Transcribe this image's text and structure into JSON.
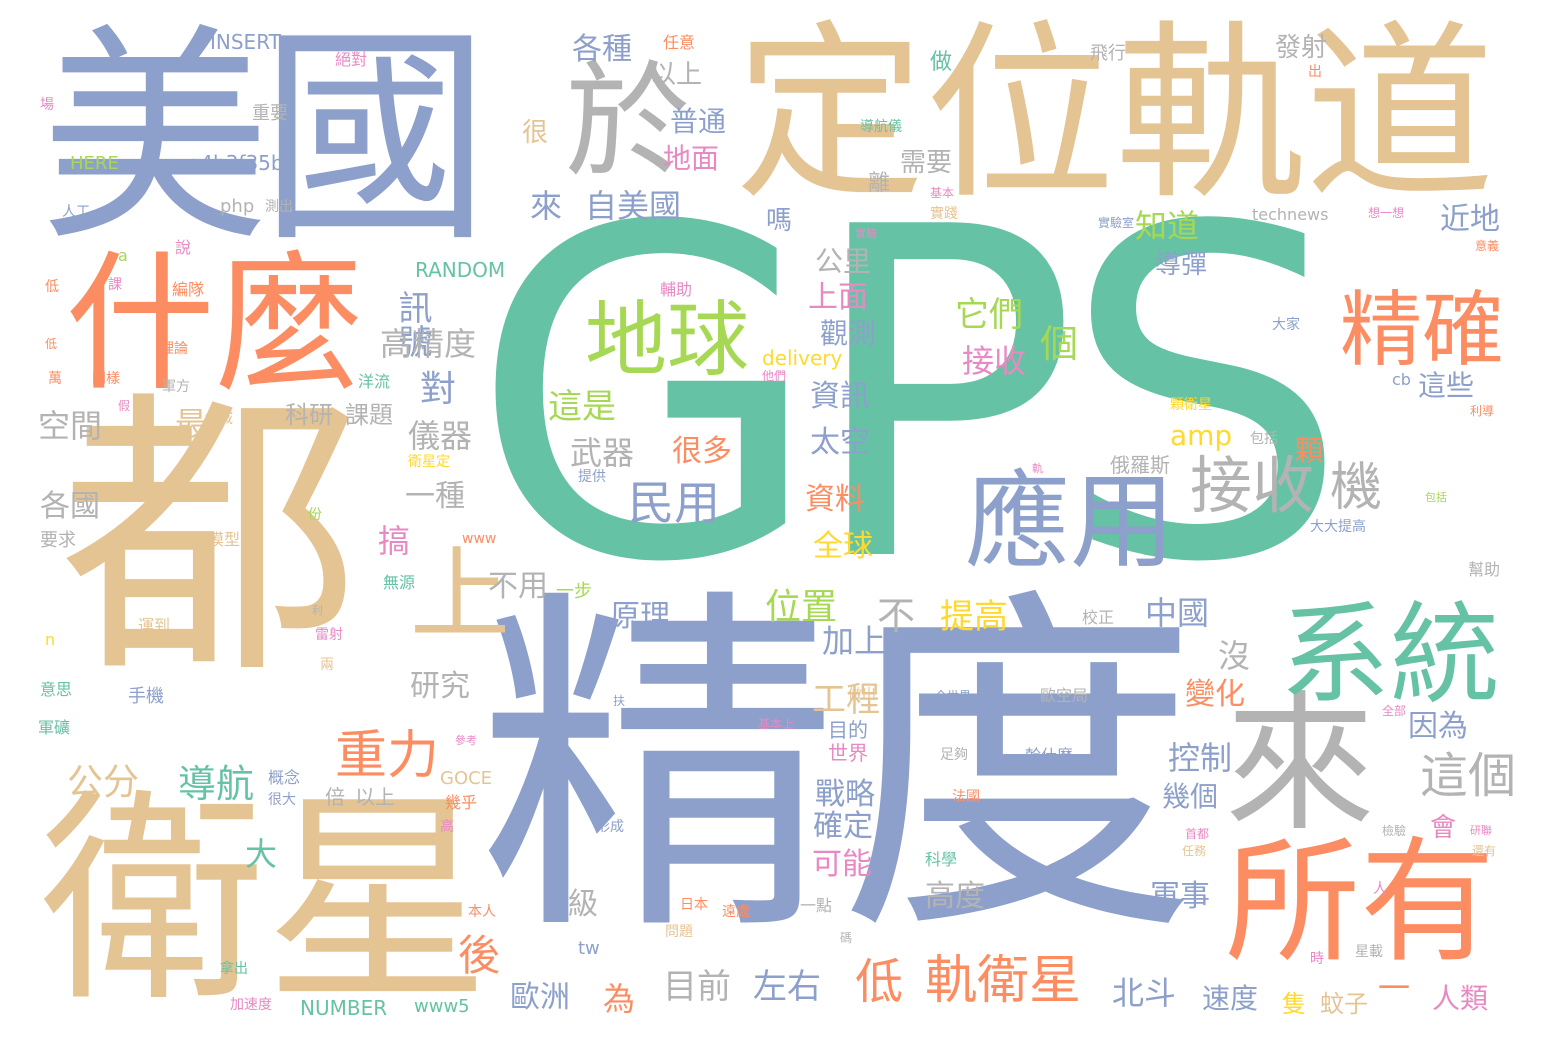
{
  "palette": {
    "green": "#66c2a5",
    "orange": "#fc8d62",
    "blue": "#8da0cb",
    "pink": "#e78ac3",
    "lime": "#a6d854",
    "yellow": "#ffd92f",
    "tan": "#e5c494",
    "gray": "#b3b3b3"
  },
  "words": [
    "GPS",
    "精度",
    "都",
    "定位軌道",
    "美國",
    "衛星",
    "什麼",
    "於",
    "所有",
    "來",
    "系統",
    "地球",
    "精確",
    "應用",
    "接收",
    "機",
    "上",
    "重力",
    "低",
    "軌衛星",
    "訊號",
    "高精度",
    "對",
    "儀器",
    "空間",
    "最",
    "科研",
    "課題",
    "各國",
    "一種",
    "搞",
    "不用",
    "一步",
    "公分",
    "導航",
    "大",
    "級",
    "後",
    "目前",
    "左右",
    "歐洲",
    "為",
    "北斗",
    "速度",
    "隻",
    "蚊子",
    "人類",
    "一",
    "軍事",
    "高度",
    "可能",
    "確定",
    "戰略",
    "世界",
    "目的",
    "工程",
    "加上",
    "不",
    "位置",
    "原理",
    "研究",
    "中國",
    "變化",
    "沒",
    "控制",
    "幾個",
    "因為",
    "這個",
    "會",
    "全球",
    "資料",
    "太空",
    "資訊",
    "觀測",
    "上面",
    "公里",
    "嗎",
    "它們",
    "接收",
    "個",
    "提高",
    "這是",
    "武器",
    "很多",
    "民用",
    "amp",
    "顆",
    "俄羅斯",
    "這些",
    "近地",
    "知道",
    "導彈",
    "離",
    "需要",
    "地面",
    "普通",
    "以上",
    "各種",
    "發射",
    "來",
    "自美國",
    "INSERT",
    "絕對",
    "重要",
    "HERE",
    "a4b3f35b",
    "php",
    "測出",
    "人工",
    "說",
    "a",
    "課",
    "編隊",
    "低",
    "理論",
    "萬",
    "同樣",
    "軍方",
    "洋流",
    "假",
    "領域",
    "RANDOM",
    "delivery",
    "他們",
    "輔助",
    "飛行",
    "任意",
    "很",
    "出",
    "導航儀",
    "基本",
    "實踐",
    "technews",
    "想一想",
    "意義",
    "實驗室",
    "大家",
    "cb",
    "利導",
    "顆衛星",
    "包括",
    "改變",
    "衛星定",
    "提供",
    "www",
    "份",
    "要求",
    "模型",
    "無源",
    "運到",
    "n",
    "意思",
    "手機",
    "軍礦",
    "GOCE",
    "概念",
    "倍",
    "以上",
    "很大",
    "幾乎",
    "本人",
    "高",
    "拿出",
    "加速度",
    "NUMBER",
    "www5",
    "tw",
    "日本",
    "遠處",
    "問題",
    "一點",
    "碼",
    "形成",
    "科學",
    "法國",
    "足夠",
    "歐空局",
    "幹什麼",
    "全部",
    "檢驗",
    "首都",
    "任務",
    "時",
    "星載",
    "還有",
    "幫助",
    "大大提高",
    "校正",
    "雷射",
    "兩",
    "做出",
    "基本上",
    "全世界",
    "扶",
    "參考",
    "利",
    "人",
    "軌",
    "研聯",
    "場",
    "低",
    "做",
    "實驗",
    "包括"
  ]
}
